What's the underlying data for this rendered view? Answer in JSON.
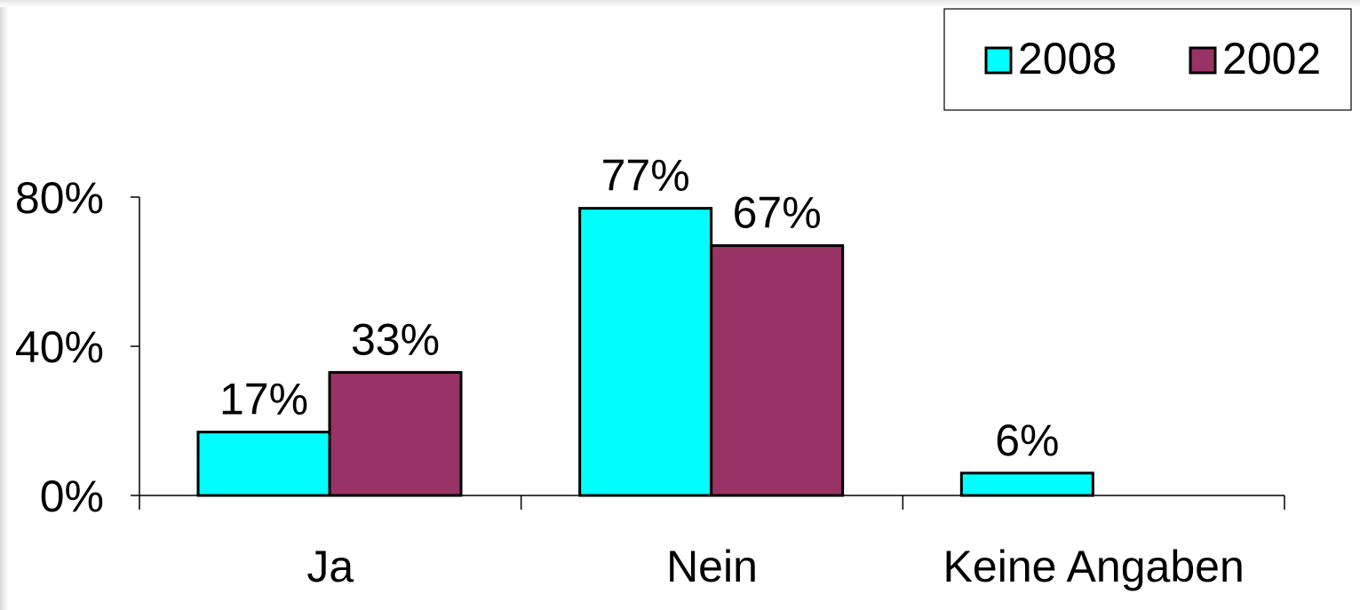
{
  "chart_data": {
    "type": "bar",
    "categories": [
      "Ja",
      "Nein",
      "Keine Angaben"
    ],
    "series": [
      {
        "name": "2008",
        "values": [
          17,
          77,
          6
        ],
        "labels": [
          "17%",
          "77%",
          "6%"
        ],
        "color": "#00ffff"
      },
      {
        "name": "2002",
        "values": [
          33,
          67,
          null
        ],
        "labels": [
          "33%",
          "67%",
          ""
        ],
        "color": "#993366"
      }
    ],
    "y_ticks": [
      0,
      40,
      80
    ],
    "y_tick_labels": [
      "0%",
      "40%",
      "80%"
    ],
    "ylim": [
      0,
      80
    ],
    "grid": false,
    "legend_position": "top-right"
  }
}
